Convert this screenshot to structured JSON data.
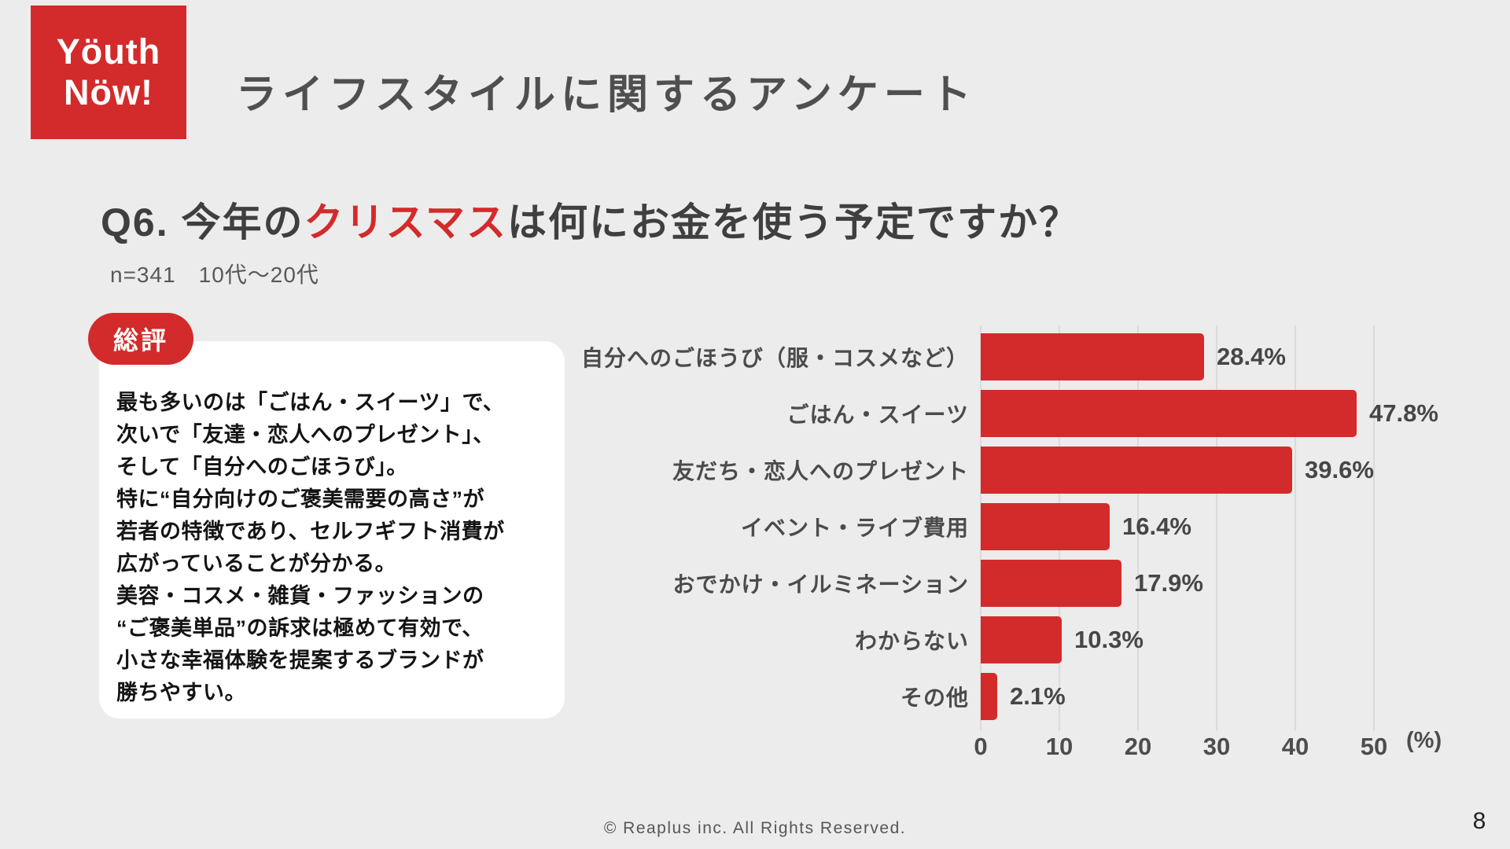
{
  "colors": {
    "accent_red": "#d32b2b",
    "background": "#ececec",
    "title_gray": "#4f4f4f",
    "body_black": "#141414",
    "gridline": "#dadada"
  },
  "header": {
    "logo_line1": "Yöuth",
    "logo_line2": "Nöw!",
    "title": "ライフスタイルに関するアンケート"
  },
  "question": {
    "prefix": "Q6. 今年の",
    "highlight": "クリスマス",
    "suffix": "は何にお金を使う予定ですか？",
    "sample": "n=341　10代〜20代"
  },
  "summary": {
    "badge": "総評",
    "lines": [
      "最も多いのは「ごはん・スイーツ」で、",
      "次いで「友達・恋人へのプレゼント」、",
      "そして「自分へのごほうび」。",
      "特に“自分向けのご褒美需要の高さ”が",
      "若者の特徴であり、セルフギフト消費が",
      "広がっていることが分かる。",
      "美容・コスメ・雑貨・ファッションの",
      "“ご褒美単品”の訴求は極めて有効で、",
      "小さな幸福体験を提案するブランドが",
      "勝ちやすい。"
    ]
  },
  "chart_data": {
    "type": "bar",
    "orientation": "horizontal",
    "categories": [
      "自分へのごほうび（服・コスメなど）",
      "ごはん・スイーツ",
      "友だち・恋人へのプレゼント",
      "イベント・ライブ費用",
      "おでかけ・イルミネーション",
      "わからない",
      "その他"
    ],
    "values": [
      28.4,
      47.8,
      39.6,
      16.4,
      17.9,
      10.3,
      2.1
    ],
    "value_labels": [
      "28.4%",
      "47.8%",
      "39.6%",
      "16.4%",
      "17.9%",
      "10.3%",
      "2.1%"
    ],
    "x_ticks": [
      "0",
      "10",
      "20",
      "30",
      "40",
      "50"
    ],
    "xlim": [
      0,
      50
    ],
    "xlabel": "(%)",
    "grid": true,
    "bar_color": "#d32b2b",
    "legend": "none",
    "title": ""
  },
  "footer": {
    "copyright": "© Reaplus inc. All Rights Reserved.",
    "page_number": "8"
  }
}
